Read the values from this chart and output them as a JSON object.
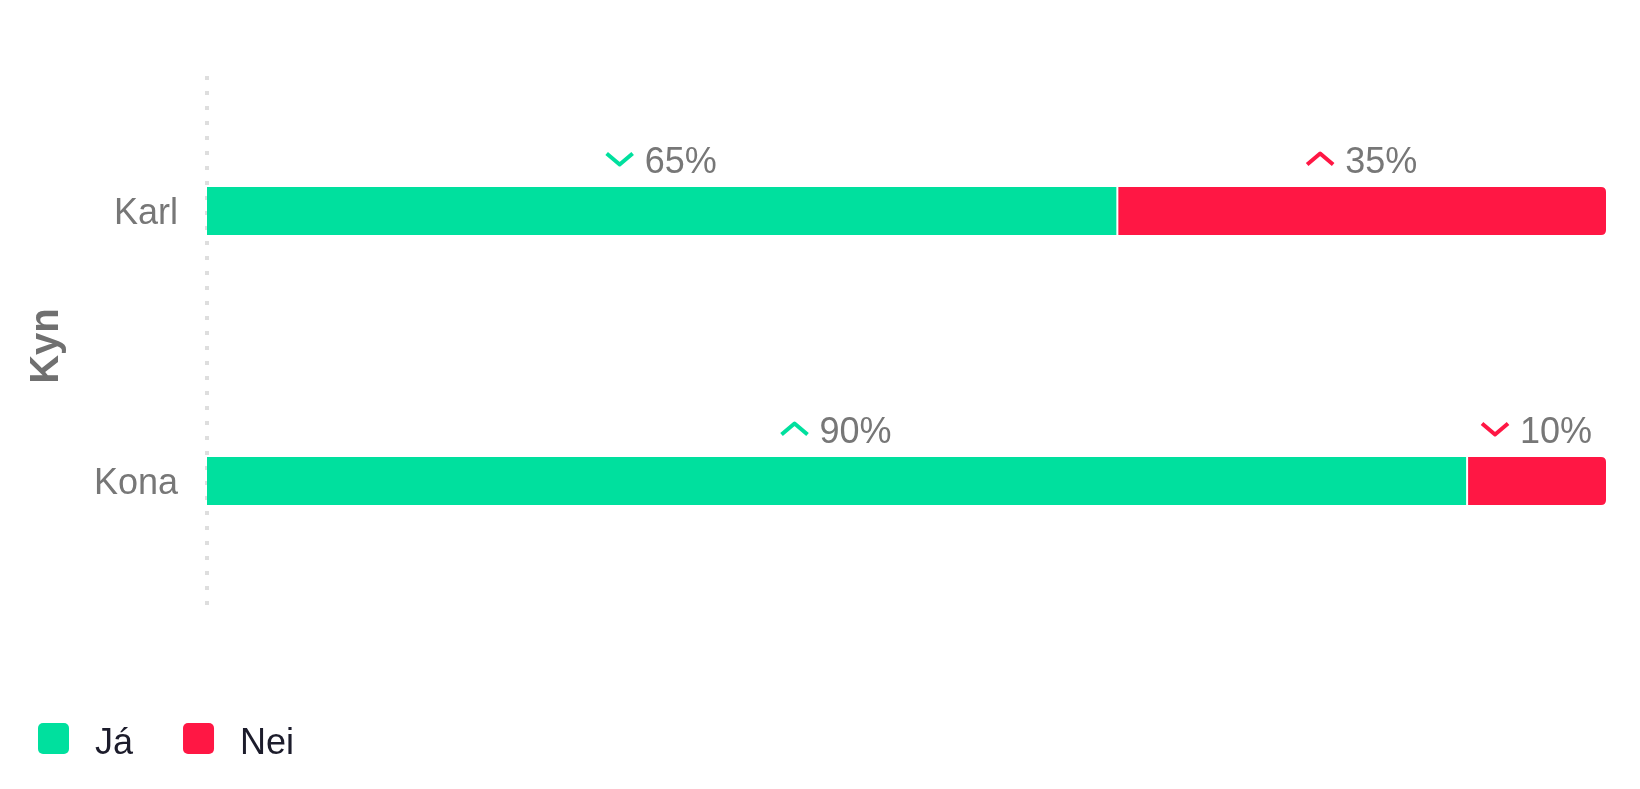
{
  "chart_data": {
    "type": "bar",
    "orientation": "horizontal",
    "stacked": true,
    "ylabel": "Kyn",
    "categories": [
      "Karl",
      "Kona"
    ],
    "series": [
      {
        "name": "Já",
        "color": "#00e09e",
        "values": [
          65,
          90
        ],
        "value_labels": [
          "65%",
          "90%"
        ]
      },
      {
        "name": "Nei",
        "color": "#ff1744",
        "values": [
          35,
          10
        ],
        "value_labels": [
          "35%",
          "10%"
        ]
      }
    ],
    "xlim": [
      0,
      100
    ],
    "tick_labels": "y",
    "legend": "bottom left"
  }
}
